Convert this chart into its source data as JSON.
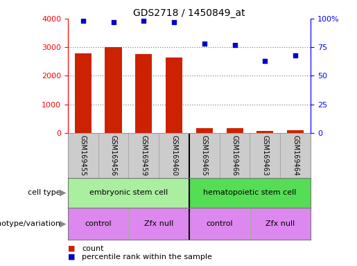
{
  "title": "GDS2718 / 1450849_at",
  "samples": [
    "GSM169455",
    "GSM169456",
    "GSM169459",
    "GSM169460",
    "GSM169465",
    "GSM169466",
    "GSM169463",
    "GSM169464"
  ],
  "counts": [
    2780,
    3010,
    2760,
    2640,
    170,
    175,
    65,
    85
  ],
  "percentile_ranks": [
    98,
    97,
    98,
    97,
    78,
    77,
    63,
    68
  ],
  "ylim_left": [
    0,
    4000
  ],
  "ylim_right": [
    0,
    100
  ],
  "yticks_left": [
    0,
    1000,
    2000,
    3000,
    4000
  ],
  "yticks_right": [
    0,
    25,
    50,
    75,
    100
  ],
  "yticklabels_right": [
    "0",
    "25",
    "50",
    "75",
    "100%"
  ],
  "bar_color": "#cc2200",
  "dot_color": "#0000cc",
  "grid_color": "#888888",
  "cell_type_labels": [
    "embryonic stem cell",
    "hematopoietic stem cell"
  ],
  "cell_type_xranges": [
    [
      0,
      4
    ],
    [
      4,
      8
    ]
  ],
  "cell_type_color_left": "#aaeea0",
  "cell_type_color_right": "#55dd55",
  "genotype_labels": [
    "control",
    "Zfx null",
    "control",
    "Zfx null"
  ],
  "genotype_xranges": [
    [
      0,
      2
    ],
    [
      2,
      4
    ],
    [
      4,
      6
    ],
    [
      6,
      8
    ]
  ],
  "genotype_color": "#dd88ee",
  "annotation_row1_label": "cell type",
  "annotation_row2_label": "genotype/variation",
  "legend_count_label": "count",
  "legend_pct_label": "percentile rank within the sample",
  "tick_bg_color": "#cccccc",
  "fig_width": 5.15,
  "fig_height": 3.84,
  "dpi": 100
}
